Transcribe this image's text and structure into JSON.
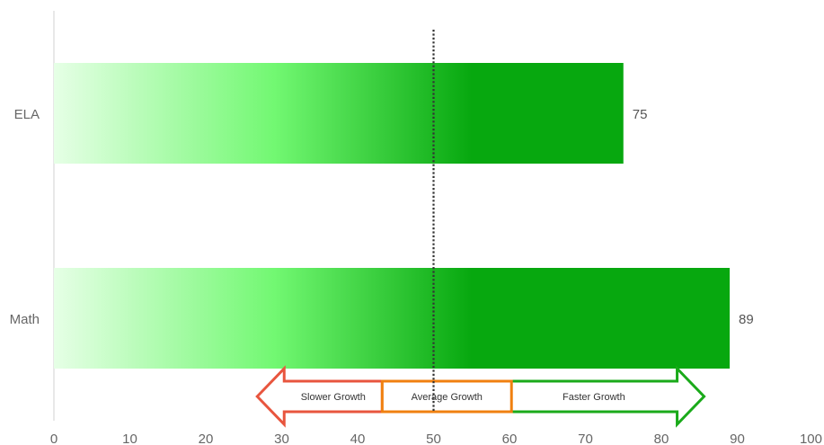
{
  "chart_data": {
    "type": "bar",
    "orientation": "horizontal",
    "categories": [
      "ELA",
      "Math"
    ],
    "values": [
      75,
      89
    ],
    "data_labels": [
      "75",
      "89"
    ],
    "title": "",
    "xlabel": "",
    "ylabel": "",
    "xlim": [
      0,
      100
    ],
    "x_ticks": [
      0,
      10,
      20,
      30,
      40,
      50,
      60,
      70,
      80,
      90,
      100
    ],
    "x_tick_labels": [
      "0",
      "10",
      "20",
      "30",
      "40",
      "50",
      "60",
      "70",
      "80",
      "90",
      "100"
    ],
    "grid": false,
    "reference_line": {
      "x": 50,
      "style": "dotted",
      "color": "#333333"
    },
    "bar_gradient": [
      "#e6ffe6",
      "#72f872",
      "#07a80f"
    ],
    "growth_legend": {
      "slower": {
        "label": "Slower Growth",
        "from": 25,
        "to": 43,
        "color": "#e8553e"
      },
      "average": {
        "label": "Average Growth",
        "from": 43,
        "to": 60.5,
        "color": "#f08010"
      },
      "faster": {
        "label": "Faster Growth",
        "from": 60.5,
        "to": 79,
        "color": "#1aaa1a"
      }
    }
  }
}
